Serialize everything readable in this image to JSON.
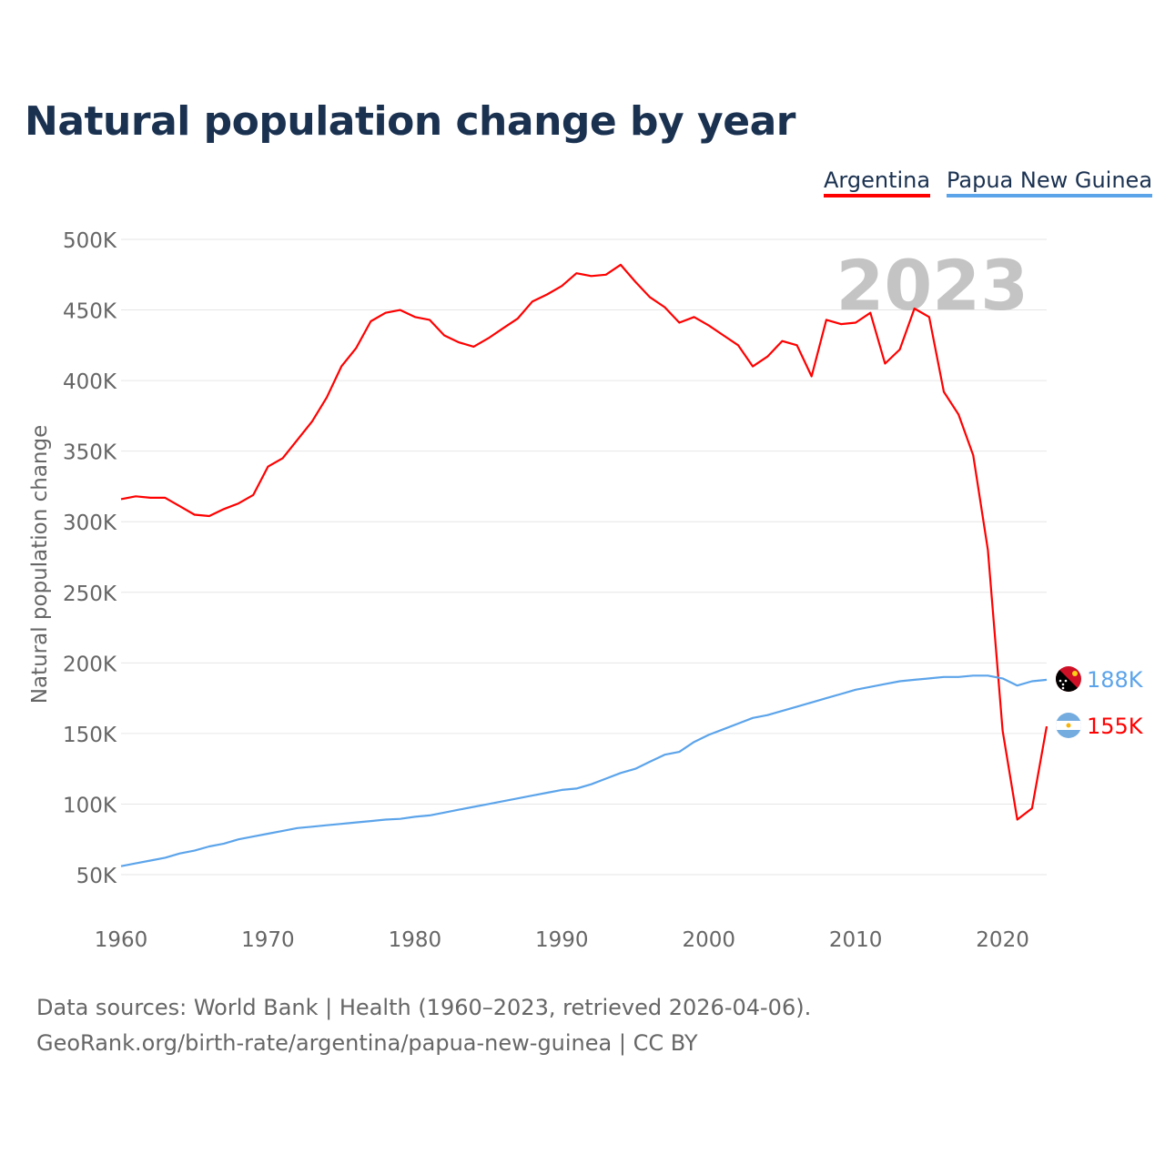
{
  "chart_data": {
    "type": "line",
    "title": "Natural population change by year",
    "xlabel": "",
    "ylabel": "Natural population change",
    "xlim": [
      1960,
      2023
    ],
    "ylim": [
      50000,
      500000
    ],
    "grid": true,
    "legend_position": "top-right",
    "year_label": "2023",
    "x_ticks": [
      "1960",
      "1970",
      "1980",
      "1990",
      "2000",
      "2010",
      "2020"
    ],
    "y_ticks": [
      "50K",
      "100K",
      "150K",
      "200K",
      "250K",
      "300K",
      "350K",
      "400K",
      "450K",
      "500K"
    ],
    "y_tick_values": [
      50000,
      100000,
      150000,
      200000,
      250000,
      300000,
      350000,
      400000,
      450000,
      500000
    ],
    "x": [
      1960,
      1961,
      1962,
      1963,
      1964,
      1965,
      1966,
      1967,
      1968,
      1969,
      1970,
      1971,
      1972,
      1973,
      1974,
      1975,
      1976,
      1977,
      1978,
      1979,
      1980,
      1981,
      1982,
      1983,
      1984,
      1985,
      1986,
      1987,
      1988,
      1989,
      1990,
      1991,
      1992,
      1993,
      1994,
      1995,
      1996,
      1997,
      1998,
      1999,
      2000,
      2001,
      2002,
      2003,
      2004,
      2005,
      2006,
      2007,
      2008,
      2009,
      2010,
      2011,
      2012,
      2013,
      2014,
      2015,
      2016,
      2017,
      2018,
      2019,
      2020,
      2021,
      2022,
      2023
    ],
    "series": [
      {
        "name": "Argentina",
        "color": "#ff0000",
        "end_label": "155K",
        "values": [
          316000,
          318000,
          317000,
          317000,
          311000,
          305000,
          304000,
          309000,
          313000,
          319000,
          339000,
          345000,
          358000,
          371000,
          388000,
          410000,
          423000,
          442000,
          448000,
          450000,
          445000,
          443000,
          432000,
          427000,
          424000,
          430000,
          437000,
          444000,
          456000,
          461000,
          467000,
          476000,
          474000,
          475000,
          482000,
          470000,
          459000,
          452000,
          441000,
          445000,
          439000,
          432000,
          425000,
          410000,
          417000,
          428000,
          425000,
          403000,
          443000,
          440000,
          441000,
          448000,
          412000,
          422000,
          451000,
          445000,
          392000,
          376000,
          347000,
          280000,
          152000,
          89000,
          97000,
          155000
        ]
      },
      {
        "name": "Papua New Guinea",
        "color": "#5ca4ea",
        "end_label": "188K",
        "values": [
          56000,
          58000,
          60000,
          62000,
          65000,
          67000,
          70000,
          72000,
          75000,
          77000,
          79000,
          81000,
          83000,
          84000,
          85000,
          86000,
          87000,
          88000,
          89000,
          89500,
          91000,
          92000,
          94000,
          96000,
          98000,
          100000,
          102000,
          104000,
          106000,
          108000,
          110000,
          111000,
          114000,
          118000,
          122000,
          125000,
          130000,
          135000,
          137000,
          144000,
          149000,
          153000,
          157000,
          161000,
          163000,
          166000,
          169000,
          172000,
          175000,
          178000,
          181000,
          183000,
          185000,
          187000,
          188000,
          189000,
          190000,
          190000,
          191000,
          191000,
          189000,
          184000,
          187000,
          188000
        ]
      }
    ]
  },
  "footer": {
    "line1": "Data sources: World Bank | Health (1960–2023, retrieved 2026-04-06).",
    "line2": "GeoRank.org/birth-rate/argentina/papua-new-guinea | CC BY"
  }
}
